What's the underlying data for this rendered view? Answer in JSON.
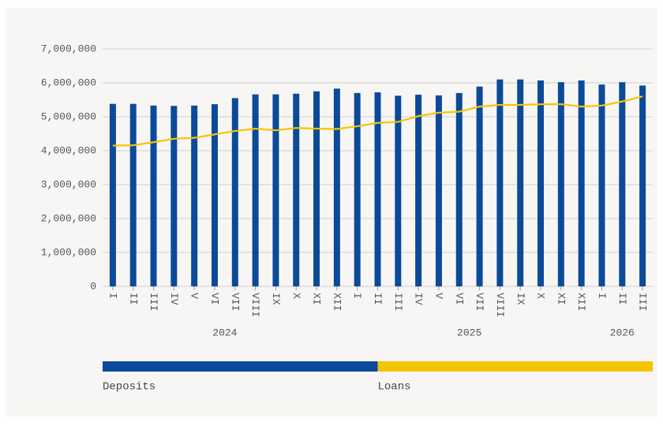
{
  "chart_data": {
    "type": "bar-line",
    "categories": [
      "I",
      "II",
      "III",
      "IV",
      "V",
      "VI",
      "VII",
      "VIII",
      "IX",
      "X",
      "XI",
      "XII",
      "I",
      "II",
      "III",
      "IV",
      "V",
      "VI",
      "VII",
      "VIII",
      "IX",
      "X",
      "XI",
      "XII",
      "I",
      "II",
      "III"
    ],
    "groups": [
      {
        "name": "2024",
        "count": 12
      },
      {
        "name": "2025",
        "count": 12
      },
      {
        "name": "2026",
        "count": 3
      }
    ],
    "series": [
      {
        "name": "Deposits",
        "type": "bar",
        "color": "#0b4a9b",
        "values": [
          5380000,
          5380000,
          5330000,
          5320000,
          5330000,
          5370000,
          5550000,
          5660000,
          5660000,
          5680000,
          5750000,
          5830000,
          5700000,
          5720000,
          5620000,
          5650000,
          5630000,
          5700000,
          5890000,
          6100000,
          6100000,
          6070000,
          6020000,
          6070000,
          5950000,
          6020000,
          5920000
        ]
      },
      {
        "name": "Loans",
        "type": "line",
        "color": "#f5c400",
        "values": [
          4150000,
          4160000,
          4250000,
          4350000,
          4380000,
          4480000,
          4580000,
          4650000,
          4600000,
          4670000,
          4650000,
          4640000,
          4720000,
          4820000,
          4850000,
          5020000,
          5120000,
          5150000,
          5300000,
          5350000,
          5350000,
          5370000,
          5370000,
          5300000,
          5330000,
          5450000,
          5600000
        ]
      }
    ],
    "ylim": [
      0,
      7000000
    ],
    "yticks": [
      0,
      {
        "value": 1000000,
        "label": "1,000,000"
      },
      {
        "value": 2000000,
        "label": "2,000,000"
      },
      {
        "value": 3000000,
        "label": "3,000,000"
      },
      {
        "value": 4000000,
        "label": "4,000,000"
      },
      {
        "value": 5000000,
        "label": "5,000,000"
      },
      {
        "value": 6000000,
        "label": "6,000,000"
      },
      {
        "value": 7000000,
        "label": "7,000,000"
      }
    ],
    "grid": true,
    "legend": "bottom"
  }
}
